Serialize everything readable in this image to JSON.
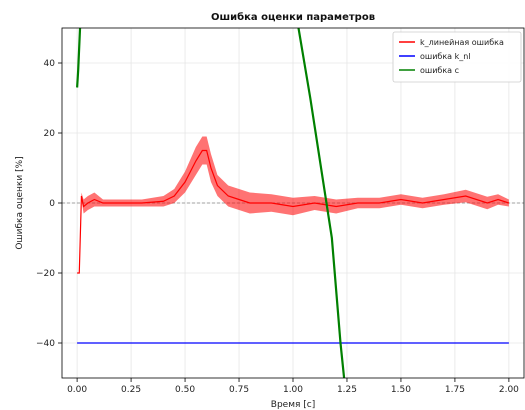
{
  "chart_data": {
    "type": "line",
    "title": "Ошибка оценки параметров",
    "xlabel": "Время [с]",
    "ylabel": "Ошибка оценки [%]",
    "xlim": [
      -0.07,
      2.07
    ],
    "ylim": [
      -50,
      50
    ],
    "x_ticks": [
      0.0,
      0.25,
      0.5,
      0.75,
      1.0,
      1.25,
      1.5,
      1.75,
      2.0
    ],
    "x_tick_labels": [
      "0.00",
      "0.25",
      "0.50",
      "0.75",
      "1.00",
      "1.25",
      "1.50",
      "1.75",
      "2.00"
    ],
    "y_ticks": [
      -40,
      -20,
      0,
      20,
      40
    ],
    "y_tick_labels": [
      "−40",
      "−20",
      "0",
      "20",
      "40"
    ],
    "grid": true,
    "reference_line": {
      "y": 0,
      "style": "dashed",
      "color": "#888888"
    },
    "legend_position": "top-right",
    "series": [
      {
        "name": "k_линейная ошибка",
        "color": "#ff0000",
        "x": [
          0.0,
          0.01,
          0.02,
          0.03,
          0.05,
          0.08,
          0.12,
          0.2,
          0.3,
          0.4,
          0.45,
          0.5,
          0.55,
          0.58,
          0.6,
          0.62,
          0.65,
          0.7,
          0.75,
          0.8,
          0.9,
          1.0,
          1.1,
          1.2,
          1.3,
          1.4,
          1.5,
          1.6,
          1.7,
          1.8,
          1.9,
          1.95,
          2.0
        ],
        "y": [
          -20,
          -20,
          2,
          -1,
          0,
          1,
          0,
          0,
          0,
          0.5,
          2,
          6,
          12,
          15,
          15,
          10,
          5,
          2,
          1,
          0,
          0,
          -1,
          0,
          -1,
          0,
          0,
          1,
          0,
          1,
          2,
          0,
          1,
          0
        ],
        "envelope": [
          0,
          0,
          1,
          2,
          2,
          2,
          1,
          1,
          1,
          1.5,
          2,
          3,
          4,
          4,
          4,
          4,
          3,
          3,
          3,
          3,
          2.5,
          2.5,
          2,
          2,
          1.5,
          1.5,
          1.5,
          1.5,
          1.5,
          1.8,
          1.8,
          1.5,
          1
        ]
      },
      {
        "name": "ошибка k_nl",
        "color": "#0000ff",
        "x": [
          0.0,
          2.0
        ],
        "y": [
          -40,
          -40
        ]
      },
      {
        "name": "ошибка c",
        "color": "#008000",
        "x": [
          0.0,
          0.005,
          0.01,
          0.015,
          1.02,
          1.08,
          1.13,
          1.18,
          1.22,
          1.24
        ],
        "y": [
          33,
          38,
          45,
          52,
          52,
          30,
          10,
          -10,
          -40,
          -52
        ]
      }
    ]
  }
}
